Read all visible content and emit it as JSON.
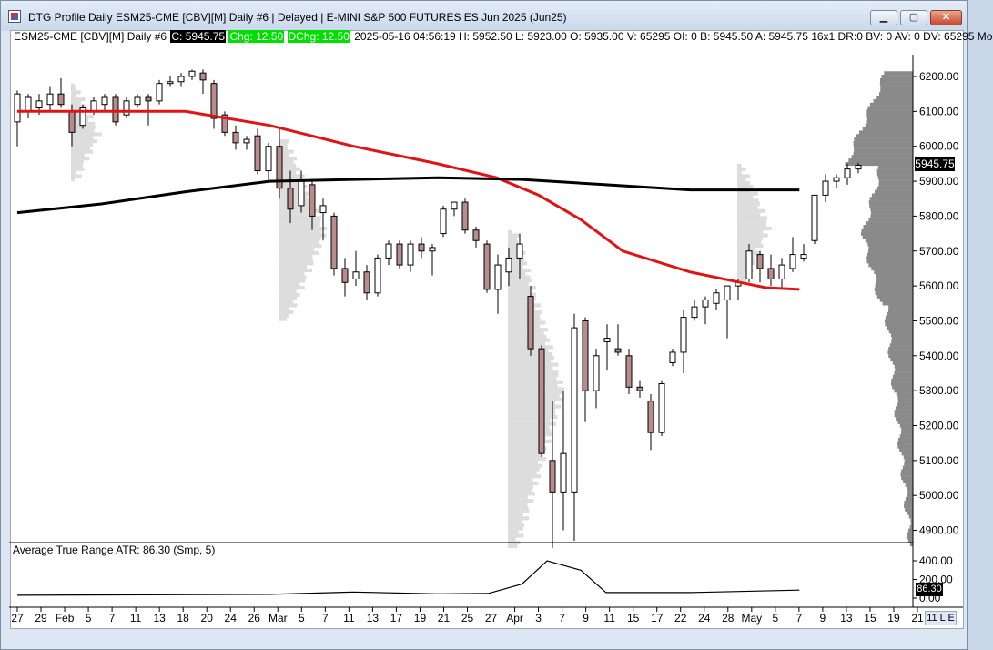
{
  "window": {
    "title": "DTG Profile Daily ESM25-CME [CBV][M]  Daily #6 | Delayed | E-MINI S&P 500 FUTURES ES Jun 2025 (Jun25)",
    "minimize_label": "▁",
    "maximize_label": "▢",
    "close_label": "✕"
  },
  "info": {
    "symbol": "ESM25-CME [CBV][M]  Daily #6",
    "close": "C: 5945.75",
    "chg": "Chg: 12.50",
    "dchg": "DChg: 12.50",
    "details": "2025-05-16 04:56:19 H: 5952.50  L: 5923.00  O: 5935.00  V: 65295  OI: 0  B: 5945.50  A: 5945.75  16x1  DR:0  BV: 0  AV: 0  DV: 65295  Mo"
  },
  "indicator": {
    "label": "Average True Range  ATR: 86.30   (Smp, 5)",
    "value_badge": "86.30",
    "ticks": [
      "400.00",
      "200.00",
      "0.00"
    ]
  },
  "price_badge": "5945.75",
  "mode_badge": "11 L E",
  "colors": {
    "bear_candle": "#b98c8c",
    "bull_candle": "#ffffff",
    "ma_fast": "#e01414",
    "ma_slow": "#000000",
    "profile": "#dddddd",
    "volume_profile": "#8a8a8a"
  },
  "chart_data": {
    "type": "candlestick",
    "title": "DTG Profile Daily ESM25-CME [CBV][M]",
    "y_ticks": [
      6200,
      6100,
      6000,
      5900,
      5800,
      5700,
      5600,
      5500,
      5400,
      5300,
      5200,
      5100,
      5000,
      4900
    ],
    "ylim": [
      4850,
      6230
    ],
    "x_tick_labels": [
      "27",
      "29",
      "Feb",
      "5",
      "7",
      "11",
      "13",
      "18",
      "20",
      "24",
      "26",
      "Mar",
      "5",
      "7",
      "11",
      "13",
      "17",
      "19",
      "21",
      "25",
      "27",
      "Apr",
      "3",
      "7",
      "9",
      "11",
      "15",
      "17",
      "22",
      "24",
      "28",
      "May",
      "5",
      "7",
      "9",
      "13",
      "15",
      "19",
      "21"
    ],
    "candles": [
      {
        "date": "2025-01-27",
        "open": 6070,
        "high": 6160,
        "low": 6000,
        "close": 6150
      },
      {
        "date": "2025-01-28",
        "open": 6100,
        "high": 6150,
        "low": 6080,
        "close": 6140
      },
      {
        "date": "2025-01-29",
        "open": 6110,
        "high": 6150,
        "low": 6090,
        "close": 6130
      },
      {
        "date": "2025-01-30",
        "open": 6120,
        "high": 6170,
        "low": 6100,
        "close": 6150
      },
      {
        "date": "2025-01-31",
        "open": 6150,
        "high": 6195,
        "low": 6110,
        "close": 6120
      },
      {
        "date": "2025-02-03",
        "open": 6100,
        "high": 6120,
        "low": 6000,
        "close": 6040
      },
      {
        "date": "2025-02-04",
        "open": 6060,
        "high": 6120,
        "low": 6050,
        "close": 6110
      },
      {
        "date": "2025-02-05",
        "open": 6100,
        "high": 6140,
        "low": 6090,
        "close": 6130
      },
      {
        "date": "2025-02-06",
        "open": 6120,
        "high": 6150,
        "low": 6100,
        "close": 6140
      },
      {
        "date": "2025-02-07",
        "open": 6140,
        "high": 6150,
        "low": 6060,
        "close": 6070
      },
      {
        "date": "2025-02-10",
        "open": 6090,
        "high": 6140,
        "low": 6080,
        "close": 6130
      },
      {
        "date": "2025-02-11",
        "open": 6120,
        "high": 6150,
        "low": 6110,
        "close": 6140
      },
      {
        "date": "2025-02-12",
        "open": 6140,
        "high": 6150,
        "low": 6060,
        "close": 6130
      },
      {
        "date": "2025-02-13",
        "open": 6130,
        "high": 6190,
        "low": 6120,
        "close": 6180
      },
      {
        "date": "2025-02-14",
        "open": 6180,
        "high": 6200,
        "low": 6170,
        "close": 6185
      },
      {
        "date": "2025-02-18",
        "open": 6185,
        "high": 6210,
        "low": 6170,
        "close": 6200
      },
      {
        "date": "2025-02-19",
        "open": 6200,
        "high": 6220,
        "low": 6190,
        "close": 6215
      },
      {
        "date": "2025-02-20",
        "open": 6210,
        "high": 6220,
        "low": 6150,
        "close": 6190
      },
      {
        "date": "2025-02-21",
        "open": 6180,
        "high": 6190,
        "low": 6050,
        "close": 6080
      },
      {
        "date": "2025-02-24",
        "open": 6090,
        "high": 6100,
        "low": 6030,
        "close": 6040
      },
      {
        "date": "2025-02-25",
        "open": 6040,
        "high": 6060,
        "low": 5990,
        "close": 6010
      },
      {
        "date": "2025-02-26",
        "open": 6010,
        "high": 6030,
        "low": 5990,
        "close": 6020
      },
      {
        "date": "2025-02-27",
        "open": 6030,
        "high": 6050,
        "low": 5920,
        "close": 5930
      },
      {
        "date": "2025-02-28",
        "open": 5930,
        "high": 6010,
        "low": 5900,
        "close": 6000
      },
      {
        "date": "2025-03-03",
        "open": 6000,
        "high": 6050,
        "low": 5850,
        "close": 5880
      },
      {
        "date": "2025-03-04",
        "open": 5880,
        "high": 5930,
        "low": 5780,
        "close": 5820
      },
      {
        "date": "2025-03-05",
        "open": 5830,
        "high": 5930,
        "low": 5810,
        "close": 5900
      },
      {
        "date": "2025-03-06",
        "open": 5890,
        "high": 5900,
        "low": 5760,
        "close": 5800
      },
      {
        "date": "2025-03-07",
        "open": 5810,
        "high": 5850,
        "low": 5730,
        "close": 5830
      },
      {
        "date": "2025-03-10",
        "open": 5800,
        "high": 5810,
        "low": 5630,
        "close": 5650
      },
      {
        "date": "2025-03-11",
        "open": 5650,
        "high": 5680,
        "low": 5570,
        "close": 5610
      },
      {
        "date": "2025-03-12",
        "open": 5620,
        "high": 5700,
        "low": 5600,
        "close": 5640
      },
      {
        "date": "2025-03-13",
        "open": 5640,
        "high": 5660,
        "low": 5560,
        "close": 5580
      },
      {
        "date": "2025-03-14",
        "open": 5580,
        "high": 5690,
        "low": 5570,
        "close": 5680
      },
      {
        "date": "2025-03-17",
        "open": 5680,
        "high": 5730,
        "low": 5660,
        "close": 5720
      },
      {
        "date": "2025-03-18",
        "open": 5720,
        "high": 5730,
        "low": 5650,
        "close": 5660
      },
      {
        "date": "2025-03-19",
        "open": 5660,
        "high": 5730,
        "low": 5640,
        "close": 5720
      },
      {
        "date": "2025-03-20",
        "open": 5720,
        "high": 5740,
        "low": 5680,
        "close": 5700
      },
      {
        "date": "2025-03-21",
        "open": 5700,
        "high": 5720,
        "low": 5630,
        "close": 5710
      },
      {
        "date": "2025-03-24",
        "open": 5750,
        "high": 5830,
        "low": 5740,
        "close": 5820
      },
      {
        "date": "2025-03-25",
        "open": 5820,
        "high": 5840,
        "low": 5800,
        "close": 5840
      },
      {
        "date": "2025-03-26",
        "open": 5840,
        "high": 5850,
        "low": 5750,
        "close": 5760
      },
      {
        "date": "2025-03-27",
        "open": 5760,
        "high": 5770,
        "low": 5710,
        "close": 5730
      },
      {
        "date": "2025-03-28",
        "open": 5720,
        "high": 5730,
        "low": 5580,
        "close": 5590
      },
      {
        "date": "2025-03-31",
        "open": 5590,
        "high": 5690,
        "low": 5520,
        "close": 5660
      },
      {
        "date": "2025-04-01",
        "open": 5640,
        "high": 5710,
        "low": 5600,
        "close": 5680
      },
      {
        "date": "2025-04-02",
        "open": 5680,
        "high": 5750,
        "low": 5620,
        "close": 5720
      },
      {
        "date": "2025-04-03",
        "open": 5570,
        "high": 5600,
        "low": 5400,
        "close": 5420
      },
      {
        "date": "2025-04-04",
        "open": 5420,
        "high": 5430,
        "low": 5110,
        "close": 5120
      },
      {
        "date": "2025-04-07",
        "open": 5100,
        "high": 5270,
        "low": 4850,
        "close": 5010
      },
      {
        "date": "2025-04-08",
        "open": 5010,
        "high": 5300,
        "low": 4900,
        "close": 5120
      },
      {
        "date": "2025-04-09",
        "open": 5010,
        "high": 5520,
        "low": 4870,
        "close": 5480
      },
      {
        "date": "2025-04-10",
        "open": 5500,
        "high": 5510,
        "low": 5210,
        "close": 5300
      },
      {
        "date": "2025-04-11",
        "open": 5300,
        "high": 5420,
        "low": 5250,
        "close": 5400
      },
      {
        "date": "2025-04-14",
        "open": 5440,
        "high": 5490,
        "low": 5360,
        "close": 5450
      },
      {
        "date": "2025-04-15",
        "open": 5420,
        "high": 5490,
        "low": 5400,
        "close": 5410
      },
      {
        "date": "2025-04-16",
        "open": 5400,
        "high": 5420,
        "low": 5290,
        "close": 5310
      },
      {
        "date": "2025-04-17",
        "open": 5310,
        "high": 5330,
        "low": 5280,
        "close": 5300
      },
      {
        "date": "2025-04-21",
        "open": 5270,
        "high": 5290,
        "low": 5130,
        "close": 5180
      },
      {
        "date": "2025-04-22",
        "open": 5180,
        "high": 5330,
        "low": 5170,
        "close": 5320
      },
      {
        "date": "2025-04-23",
        "open": 5380,
        "high": 5420,
        "low": 5370,
        "close": 5410
      },
      {
        "date": "2025-04-24",
        "open": 5410,
        "high": 5530,
        "low": 5350,
        "close": 5510
      },
      {
        "date": "2025-04-25",
        "open": 5510,
        "high": 5560,
        "low": 5500,
        "close": 5540
      },
      {
        "date": "2025-04-28",
        "open": 5540,
        "high": 5570,
        "low": 5490,
        "close": 5560
      },
      {
        "date": "2025-04-29",
        "open": 5550,
        "high": 5590,
        "low": 5530,
        "close": 5580
      },
      {
        "date": "2025-04-30",
        "open": 5560,
        "high": 5600,
        "low": 5450,
        "close": 5600
      },
      {
        "date": "2025-05-01",
        "open": 5600,
        "high": 5620,
        "low": 5560,
        "close": 5610
      },
      {
        "date": "2025-05-02",
        "open": 5620,
        "high": 5720,
        "low": 5610,
        "close": 5700
      },
      {
        "date": "2025-05-05",
        "open": 5690,
        "high": 5700,
        "low": 5610,
        "close": 5650
      },
      {
        "date": "2025-05-06",
        "open": 5650,
        "high": 5690,
        "low": 5600,
        "close": 5620
      },
      {
        "date": "2025-05-07",
        "open": 5620,
        "high": 5680,
        "low": 5590,
        "close": 5660
      },
      {
        "date": "2025-05-08",
        "open": 5650,
        "high": 5740,
        "low": 5640,
        "close": 5690
      },
      {
        "date": "2025-05-09",
        "open": 5680,
        "high": 5720,
        "low": 5670,
        "close": 5690
      },
      {
        "date": "2025-05-12",
        "open": 5730,
        "high": 5860,
        "low": 5720,
        "close": 5860
      },
      {
        "date": "2025-05-13",
        "open": 5860,
        "high": 5920,
        "low": 5840,
        "close": 5900
      },
      {
        "date": "2025-05-14",
        "open": 5900,
        "high": 5920,
        "low": 5880,
        "close": 5910
      },
      {
        "date": "2025-05-15",
        "open": 5910,
        "high": 5950,
        "low": 5890,
        "close": 5935
      },
      {
        "date": "2025-05-16",
        "open": 5935,
        "high": 5952.5,
        "low": 5923,
        "close": 5945.75
      }
    ],
    "moving_averages": [
      {
        "color": "#e01414",
        "points": [
          [
            0,
            6100
          ],
          [
            0.2,
            6100
          ],
          [
            0.3,
            6060
          ],
          [
            0.4,
            6000
          ],
          [
            0.5,
            5950
          ],
          [
            0.57,
            5910
          ],
          [
            0.62,
            5860
          ],
          [
            0.67,
            5790
          ],
          [
            0.72,
            5700
          ],
          [
            0.8,
            5640
          ],
          [
            0.86,
            5610
          ],
          [
            0.89,
            5595
          ],
          [
            0.93,
            5590
          ]
        ]
      },
      {
        "color": "#000000",
        "points": [
          [
            0,
            5810
          ],
          [
            0.1,
            5835
          ],
          [
            0.2,
            5870
          ],
          [
            0.3,
            5900
          ],
          [
            0.4,
            5905
          ],
          [
            0.5,
            5910
          ],
          [
            0.6,
            5905
          ],
          [
            0.7,
            5890
          ],
          [
            0.8,
            5875
          ],
          [
            0.87,
            5875
          ],
          [
            0.93,
            5875
          ]
        ]
      }
    ],
    "atr": {
      "ylim": [
        0,
        400
      ],
      "points": [
        [
          0,
          30
        ],
        [
          0.3,
          40
        ],
        [
          0.4,
          65
        ],
        [
          0.5,
          45
        ],
        [
          0.56,
          50
        ],
        [
          0.6,
          150
        ],
        [
          0.63,
          400
        ],
        [
          0.67,
          300
        ],
        [
          0.7,
          60
        ],
        [
          0.8,
          60
        ],
        [
          0.93,
          86.3
        ]
      ]
    }
  }
}
